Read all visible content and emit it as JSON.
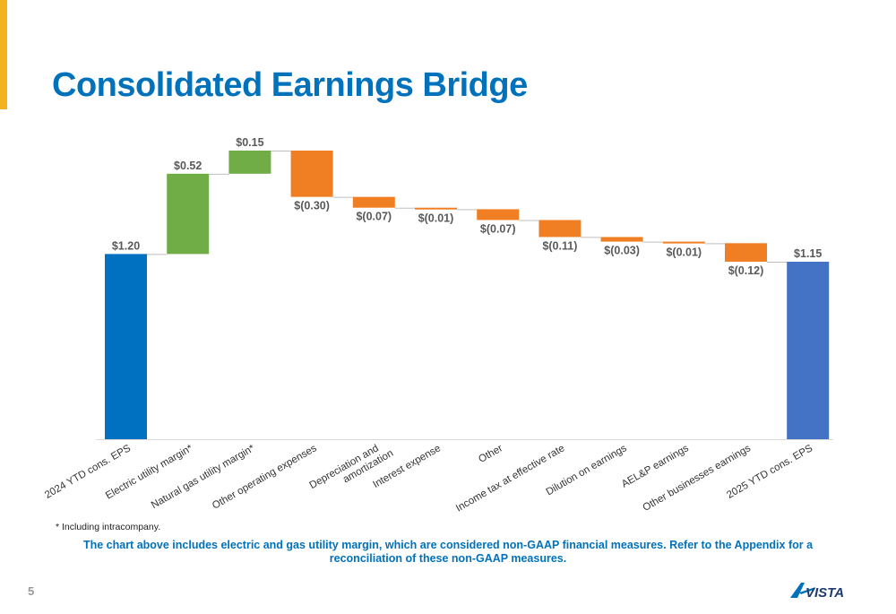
{
  "slide": {
    "title": "Consolidated Earnings Bridge",
    "footnote": "* Including intracompany.",
    "disclaimer": "The chart above includes electric and gas utility margin, which are considered non-GAAP financial measures. Refer to the Appendix for a reconciliation of these non-GAAP measures.",
    "page_number": "5",
    "logo_text": "AVISTA"
  },
  "colors": {
    "accent": "#F4B223",
    "title": "#0072BC",
    "start_total": "#0070C0",
    "end_total": "#4472C4",
    "increase": "#70AD47",
    "decrease": "#F07F23"
  },
  "chart_data": {
    "type": "bar",
    "subtype": "waterfall",
    "categories": [
      "2024 YTD cons. EPS",
      "Electric utility margin*",
      "Natural gas utility margin*",
      "Other operating expenses",
      "Depreciation and amortization",
      "Interest expense",
      "Other",
      "Income tax at effective rate",
      "Dilution on earnings",
      "AEL&P earnings",
      "Other businesses earnings",
      "2025 YTD cons. EPS"
    ],
    "values": [
      1.2,
      0.52,
      0.15,
      -0.3,
      -0.07,
      -0.01,
      -0.07,
      -0.11,
      -0.03,
      -0.01,
      -0.12,
      1.15
    ],
    "kinds": [
      "total",
      "increase",
      "increase",
      "decrease",
      "decrease",
      "decrease",
      "decrease",
      "decrease",
      "decrease",
      "decrease",
      "decrease",
      "total"
    ],
    "data_labels": [
      "$1.20",
      "$0.52",
      "$0.15",
      "$(0.30)",
      "$(0.07)",
      "$(0.01)",
      "$(0.07)",
      "$(0.11)",
      "$(0.03)",
      "$(0.01)",
      "$(0.12)",
      "$1.15"
    ],
    "ylim": [
      0,
      1.87
    ],
    "grid": false,
    "legend": "none"
  }
}
